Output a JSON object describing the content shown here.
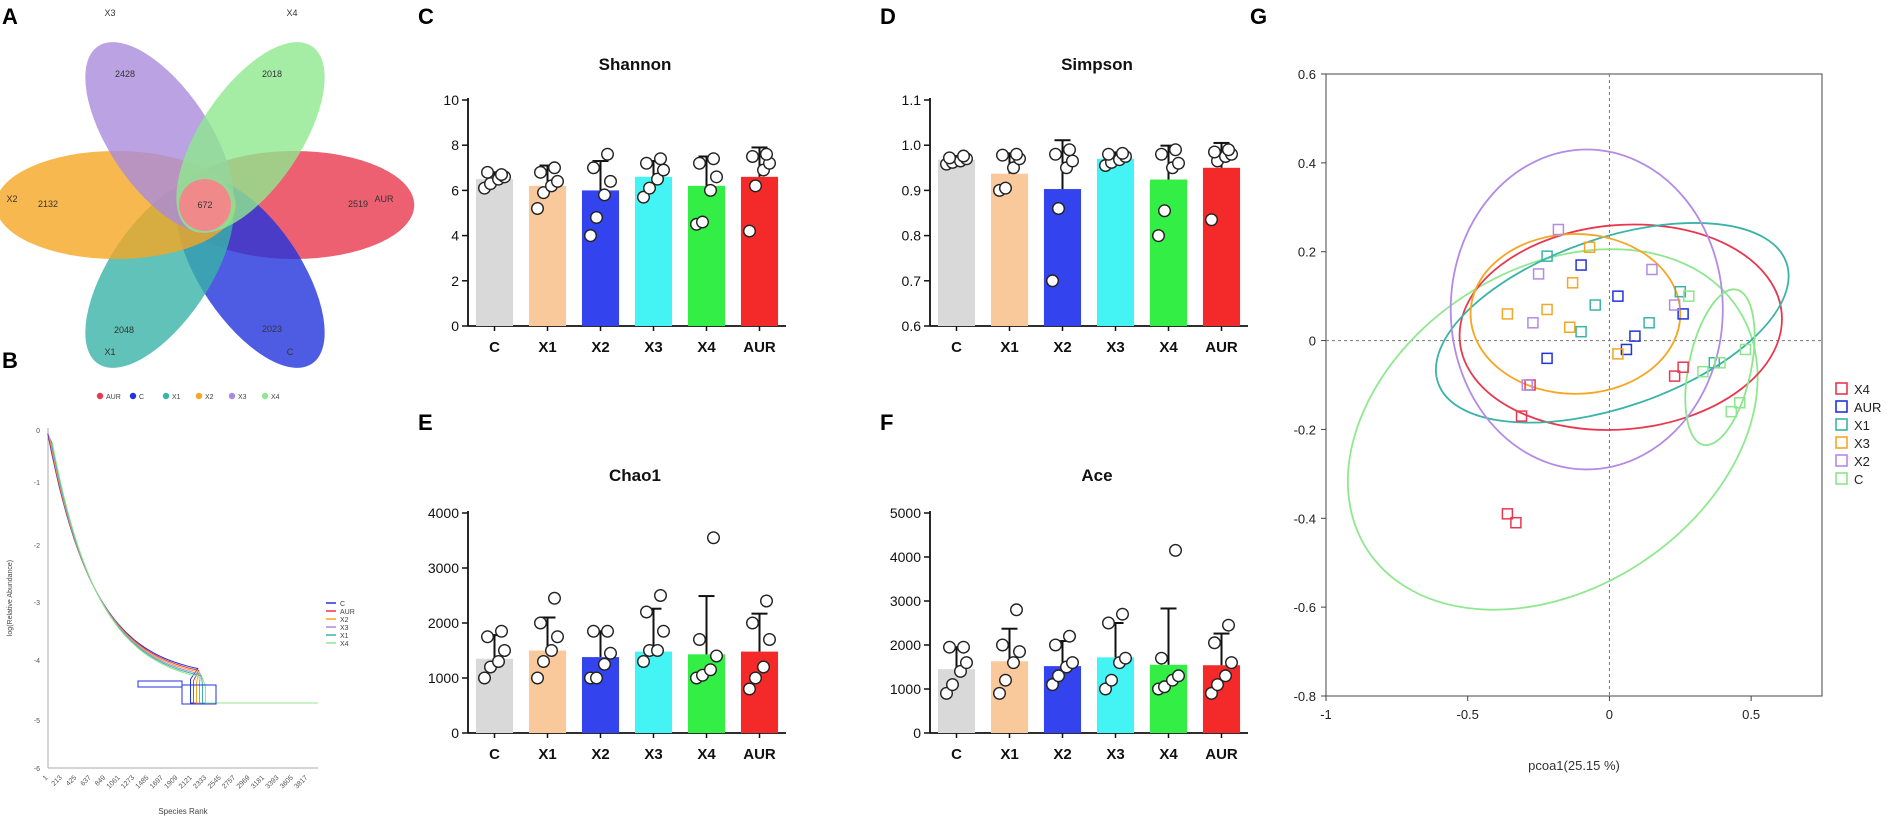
{
  "panel_letters": {
    "A": "A",
    "B": "B",
    "C": "C",
    "D": "D",
    "E": "E",
    "F": "F",
    "G": "G"
  },
  "colors": {
    "AUR": "#e8384f",
    "C": "#2233dd",
    "X1": "#3ab3a8",
    "X2": "#f5a623",
    "X3": "#a98bdc",
    "X4": "#8fe88f",
    "bar_C": "#d9d9d9",
    "bar_X1": "#f9c89b",
    "bar_X2": "#3344ee",
    "bar_X3": "#44f4f4",
    "bar_X4": "#33ee44",
    "bar_AUR": "#f42a2a"
  },
  "chart_data": [
    {
      "id": "A",
      "type": "venn-flower",
      "center_value": "672",
      "petals": [
        {
          "name": "AUR",
          "value": "2519"
        },
        {
          "name": "C",
          "value": "2023"
        },
        {
          "name": "X1",
          "value": "2048"
        },
        {
          "name": "X2",
          "value": "2132"
        },
        {
          "name": "X3",
          "value": "2428"
        },
        {
          "name": "X4",
          "value": "2018"
        }
      ]
    },
    {
      "id": "B",
      "type": "line",
      "xlabel": "Species Rank",
      "ylabel": "log(Relative Abundance)",
      "yticks": [
        "0",
        "-1",
        "-2",
        "-3",
        "-4",
        "-5",
        "-6"
      ],
      "xticks": [
        "1",
        "213",
        "425",
        "637",
        "849",
        "1061",
        "1273",
        "1485",
        "1697",
        "1909",
        "2121",
        "2333",
        "2545",
        "2757",
        "2969",
        "3181",
        "3393",
        "3605",
        "3817"
      ],
      "legend_top": [
        "AUR",
        "C",
        "X1",
        "X2",
        "X3",
        "X4"
      ],
      "legend_right": [
        "C",
        "AUR",
        "X2",
        "X3",
        "X1",
        "X4"
      ]
    },
    {
      "id": "C",
      "type": "bar",
      "title": "Shannon",
      "categories": [
        "C",
        "X1",
        "X2",
        "X3",
        "X4",
        "AUR"
      ],
      "values": [
        6.5,
        6.2,
        6.0,
        6.6,
        6.2,
        6.6
      ],
      "errors": [
        0.3,
        0.9,
        1.3,
        0.7,
        1.3,
        1.3
      ],
      "points": [
        [
          6.1,
          6.3,
          6.5,
          6.6,
          6.8,
          6.7
        ],
        [
          5.2,
          5.9,
          6.2,
          6.4,
          6.8,
          7.0
        ],
        [
          4.0,
          4.8,
          5.8,
          6.4,
          7.0,
          7.6
        ],
        [
          5.7,
          6.1,
          6.5,
          6.9,
          7.2,
          7.4
        ],
        [
          4.5,
          4.6,
          6.0,
          6.6,
          7.2,
          7.4
        ],
        [
          4.2,
          6.2,
          6.9,
          7.2,
          7.5,
          7.6
        ]
      ],
      "ylim": [
        0,
        10
      ],
      "yticks": [
        "0",
        "2",
        "4",
        "6",
        "8",
        "10"
      ]
    },
    {
      "id": "D",
      "type": "bar",
      "title": "Simpson",
      "categories": [
        "C",
        "X1",
        "X2",
        "X3",
        "X4",
        "AUR"
      ],
      "values": [
        0.968,
        0.937,
        0.903,
        0.97,
        0.924,
        0.95
      ],
      "errors": [
        0.008,
        0.045,
        0.108,
        0.014,
        0.075,
        0.055
      ],
      "points": [
        [
          0.958,
          0.962,
          0.965,
          0.97,
          0.972,
          0.976
        ],
        [
          0.9,
          0.905,
          0.95,
          0.97,
          0.978,
          0.98
        ],
        [
          0.7,
          0.86,
          0.95,
          0.965,
          0.98,
          0.99
        ],
        [
          0.955,
          0.962,
          0.968,
          0.975,
          0.98,
          0.982
        ],
        [
          0.8,
          0.855,
          0.95,
          0.96,
          0.98,
          0.99
        ],
        [
          0.835,
          0.965,
          0.975,
          0.98,
          0.985,
          0.99
        ]
      ],
      "ylim": [
        0.6,
        1.1
      ],
      "yticks": [
        "0.6",
        "0.7",
        "0.8",
        "0.9",
        "1.0",
        "1.1"
      ]
    },
    {
      "id": "E",
      "type": "bar",
      "title": "Chao1",
      "categories": [
        "C",
        "X1",
        "X2",
        "X3",
        "X4",
        "AUR"
      ],
      "values": [
        1350,
        1500,
        1380,
        1480,
        1430,
        1480
      ],
      "errors": [
        430,
        600,
        470,
        780,
        1060,
        690
      ],
      "points": [
        [
          1000,
          1200,
          1300,
          1500,
          1750,
          1850
        ],
        [
          1000,
          1300,
          1500,
          1750,
          2000,
          2450
        ],
        [
          1000,
          1000,
          1250,
          1450,
          1850,
          1850
        ],
        [
          1300,
          1500,
          1500,
          1850,
          2200,
          2500
        ],
        [
          1000,
          1050,
          1150,
          1400,
          1700,
          3550
        ],
        [
          800,
          1000,
          1200,
          1700,
          2000,
          2400
        ]
      ],
      "ylim": [
        0,
        4000
      ],
      "yticks": [
        "0",
        "1000",
        "2000",
        "3000",
        "4000"
      ]
    },
    {
      "id": "F",
      "type": "bar",
      "title": "Ace",
      "categories": [
        "C",
        "X1",
        "X2",
        "X3",
        "X4",
        "AUR"
      ],
      "values": [
        1450,
        1630,
        1520,
        1720,
        1550,
        1540
      ],
      "errors": [
        500,
        740,
        570,
        780,
        1280,
        720
      ],
      "points": [
        [
          900,
          1100,
          1400,
          1600,
          1950,
          1950
        ],
        [
          900,
          1200,
          1600,
          1850,
          2000,
          2800
        ],
        [
          1100,
          1300,
          1500,
          1600,
          2000,
          2200
        ],
        [
          1000,
          1200,
          1600,
          1700,
          2500,
          2700
        ],
        [
          1000,
          1050,
          1200,
          1300,
          1700,
          4150
        ],
        [
          900,
          1100,
          1300,
          1600,
          2050,
          2450
        ]
      ],
      "ylim": [
        0,
        5000
      ],
      "yticks": [
        "0",
        "1000",
        "2000",
        "3000",
        "4000",
        "5000"
      ]
    },
    {
      "id": "G",
      "type": "scatter",
      "xlabel": "pcoa1(25.15 %)",
      "xlim": [
        -1,
        0.75
      ],
      "ylim": [
        -0.8,
        0.6
      ],
      "xticks": [
        "-1",
        "-0.5",
        "0",
        "0.5"
      ],
      "yticks": [
        "0.6",
        "0.4",
        "0.2",
        "0",
        "-0.2",
        "-0.4",
        "-0.6",
        "-0.8"
      ],
      "legend": [
        "X4",
        "AUR",
        "X1",
        "X3",
        "X2",
        "C"
      ],
      "series": [
        {
          "name": "X4",
          "points": [
            [
              -0.31,
              -0.17
            ],
            [
              -0.36,
              -0.39
            ],
            [
              -0.33,
              -0.41
            ],
            [
              -0.28,
              -0.1
            ],
            [
              0.23,
              -0.08
            ],
            [
              0.26,
              -0.06
            ]
          ]
        },
        {
          "name": "AUR",
          "points": [
            [
              -0.1,
              0.17
            ],
            [
              0.03,
              0.1
            ],
            [
              0.09,
              0.01
            ],
            [
              0.06,
              -0.02
            ],
            [
              0.26,
              0.06
            ],
            [
              -0.22,
              -0.04
            ]
          ]
        },
        {
          "name": "X1",
          "points": [
            [
              -0.22,
              0.19
            ],
            [
              -0.05,
              0.08
            ],
            [
              -0.1,
              0.02
            ],
            [
              0.14,
              0.04
            ],
            [
              0.25,
              0.11
            ],
            [
              0.37,
              -0.05
            ]
          ]
        },
        {
          "name": "X3",
          "points": [
            [
              -0.36,
              0.06
            ],
            [
              -0.13,
              0.13
            ],
            [
              -0.07,
              0.21
            ],
            [
              -0.14,
              0.03
            ],
            [
              0.03,
              -0.03
            ],
            [
              -0.22,
              0.07
            ]
          ]
        },
        {
          "name": "X2",
          "points": [
            [
              -0.18,
              0.25
            ],
            [
              -0.25,
              0.15
            ],
            [
              -0.27,
              0.04
            ],
            [
              -0.29,
              -0.1
            ],
            [
              0.23,
              0.08
            ],
            [
              0.15,
              0.16
            ]
          ]
        },
        {
          "name": "C",
          "points": [
            [
              0.28,
              0.1
            ],
            [
              0.33,
              -0.07
            ],
            [
              0.39,
              -0.05
            ],
            [
              0.46,
              -0.14
            ],
            [
              0.43,
              -0.16
            ],
            [
              0.48,
              -0.02
            ]
          ]
        }
      ]
    }
  ]
}
